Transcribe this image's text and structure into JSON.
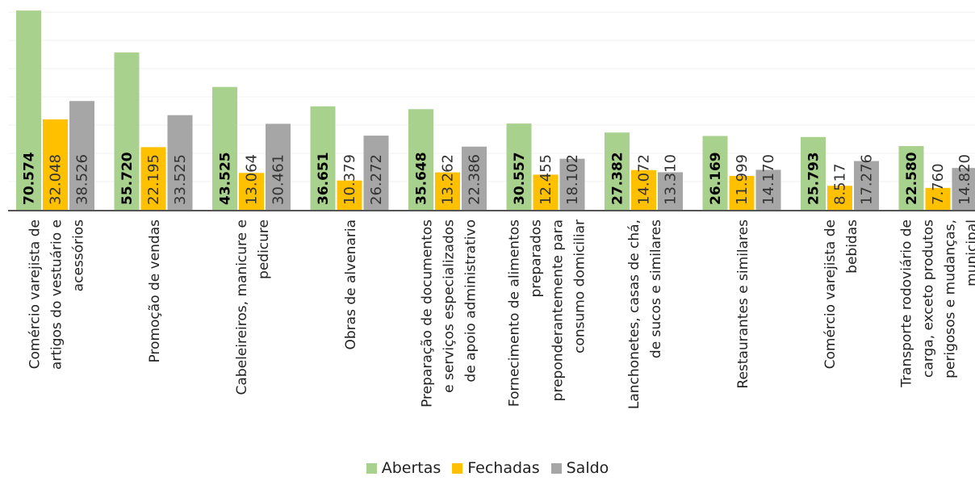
{
  "chart_data": {
    "type": "bar",
    "categories": [
      "Comércio varejista de artigos do vestuário e acessórios",
      "Promoção de vendas",
      "Cabeleireiros, manicure e pedicure",
      "Obras de alvenaria",
      "Preparação de documentos e serviços especializados de apoio administrativo",
      "Fornecimento de alimentos preparados preponderantemente para consumo domiciliar",
      "Lanchonetes, casas de chá, de sucos e similares",
      "Restaurantes e similares",
      "Comércio varejista de bebidas",
      "Transporte rodoviário de carga, exceto produtos perigosos e mudanças, municipal"
    ],
    "category_lines": [
      [
        "Comércio varejista de",
        "artigos do vestuário e",
        "acessórios"
      ],
      [
        "Promoção de vendas"
      ],
      [
        "Cabeleireiros, manicure e",
        "pedicure"
      ],
      [
        "Obras de alvenaria"
      ],
      [
        "Preparação de documentos",
        "e serviços especializados",
        "de apoio administrativo"
      ],
      [
        "Fornecimento de alimentos",
        "preparados",
        "preponderantemente para",
        "consumo domiciliar"
      ],
      [
        "Lanchonetes, casas de chá,",
        "de sucos e similares"
      ],
      [
        "Restaurantes e similares"
      ],
      [
        "Comércio varejista de",
        "bebidas"
      ],
      [
        "Transporte rodoviário de",
        "carga, exceto produtos",
        "perigosos e mudanças,",
        "municipal"
      ]
    ],
    "series": [
      {
        "name": "Abertas",
        "color": "#a9d18e",
        "values": [
          70574,
          55720,
          43525,
          36651,
          35648,
          30557,
          27382,
          26169,
          25793,
          22580
        ],
        "labels": [
          "70.574",
          "55.720",
          "43.525",
          "36.651",
          "35.648",
          "30.557",
          "27.382",
          "26.169",
          "25.793",
          "22.580"
        ]
      },
      {
        "name": "Fechadas",
        "color": "#ffc000",
        "values": [
          32048,
          22195,
          13064,
          10379,
          13262,
          12455,
          14072,
          11999,
          8517,
          7760
        ],
        "labels": [
          "32.048",
          "22.195",
          "13.064",
          "10.379",
          "13.262",
          "12.455",
          "14.072",
          "11.999",
          "8.517",
          "7.760"
        ]
      },
      {
        "name": "Saldo",
        "color": "#a6a6a6",
        "values": [
          38526,
          33525,
          30461,
          26272,
          22386,
          18102,
          13310,
          14170,
          17276,
          14820
        ],
        "labels": [
          "38.526",
          "33.525",
          "30.461",
          "26.272",
          "22.386",
          "18.102",
          "13.310",
          "14.170",
          "17.276",
          "14.820"
        ]
      }
    ],
    "ylim": [
      0,
      72000
    ],
    "grid": true,
    "legend_position": "bottom-center"
  },
  "legend": {
    "items": [
      {
        "label": "Abertas",
        "color": "#a9d18e"
      },
      {
        "label": "Fechadas",
        "color": "#ffc000"
      },
      {
        "label": "Saldo",
        "color": "#a6a6a6"
      }
    ]
  }
}
